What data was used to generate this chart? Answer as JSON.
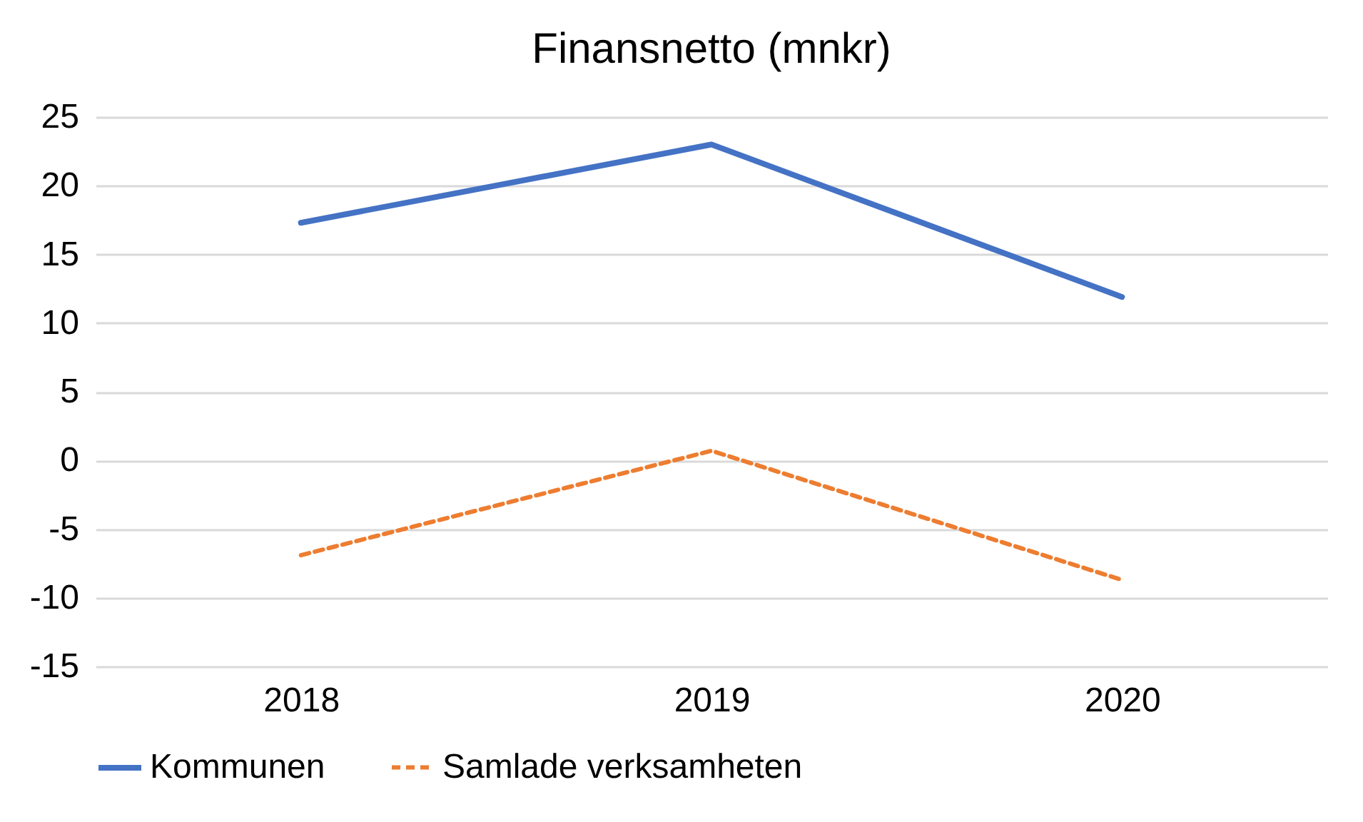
{
  "chart_data": {
    "type": "line",
    "title": "Finansnetto (mnkr)",
    "categories": [
      "2018",
      "2019",
      "2020"
    ],
    "series": [
      {
        "name": "Kommunen",
        "color": "#4472c4",
        "values": [
          17.3,
          23.0,
          11.9
        ],
        "line_style": "solid"
      },
      {
        "name": "Samlade verksamheten",
        "color": "#ed7d31",
        "values": [
          -6.9,
          0.7,
          -8.7
        ],
        "line_style": "dashed"
      }
    ],
    "ylim": [
      -15,
      25
    ],
    "yticks": [
      -15,
      -10,
      -5,
      0,
      5,
      10,
      15,
      20,
      25
    ],
    "grid": "y",
    "legend": "bottom",
    "marker": "none"
  }
}
